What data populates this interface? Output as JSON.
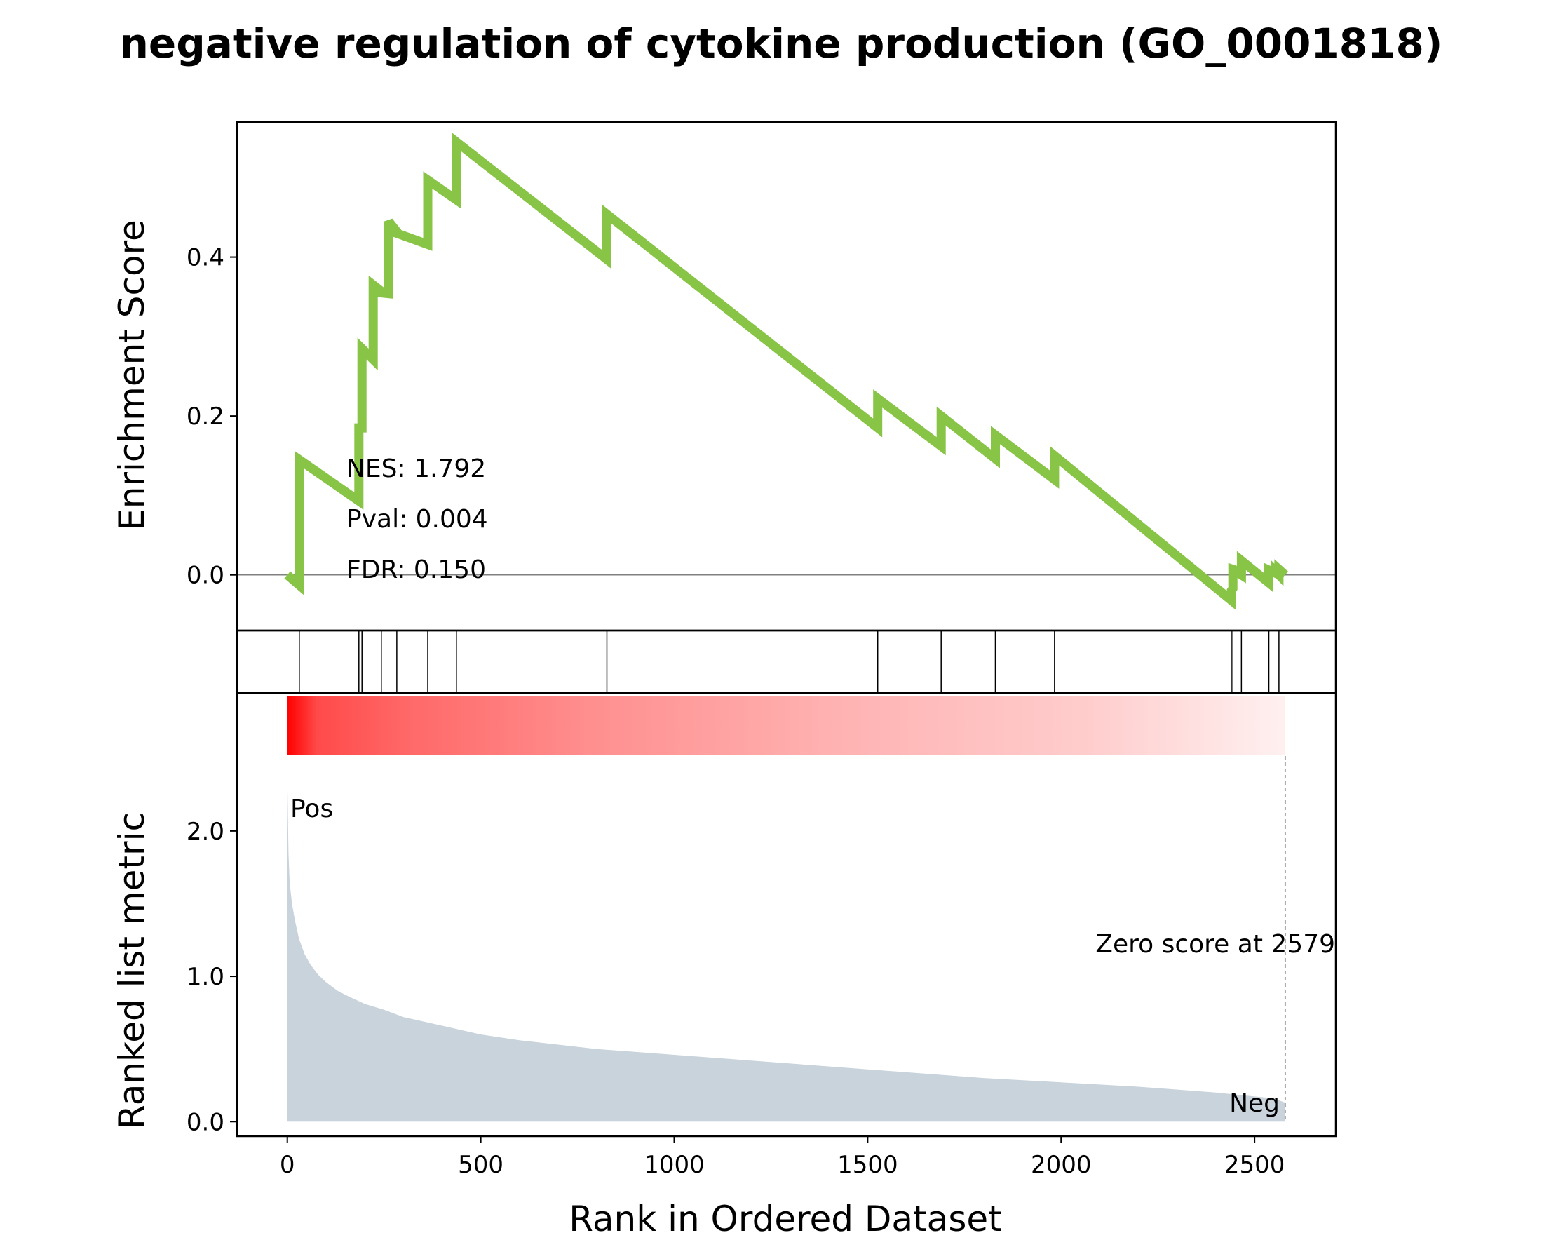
{
  "chart_data": {
    "type": "line",
    "title": "negative regulation of cytokine production (GO_0001818)",
    "xlabel": "Rank in Ordered Dataset",
    "colors": {
      "es_line": "#88c446",
      "metric_fill": "#c8d3dc",
      "pos": "#ff0000",
      "neg": "#0000ff",
      "zero_line": "#808080"
    },
    "enrichment": {
      "ylabel": "Enrichment Score",
      "ylim": [
        -0.07,
        0.57
      ],
      "yticks": [
        0.0,
        0.2,
        0.4
      ],
      "ytick_labels": [
        "0.0",
        "0.2",
        "0.4"
      ],
      "stats": [
        "NES: 1.792",
        "Pval: 0.004",
        "FDR: 0.150"
      ],
      "x": [
        0,
        31,
        31,
        185,
        185,
        193,
        193,
        222,
        222,
        243,
        243,
        262,
        262,
        283,
        283,
        363,
        363,
        437,
        437,
        826,
        826,
        1526,
        1526,
        1690,
        1690,
        1830,
        1830,
        1983,
        1983,
        2440,
        2440,
        2444,
        2444,
        2450,
        2450,
        2466,
        2466,
        2537,
        2537,
        2555,
        2555,
        2563,
        2563,
        2579
      ],
      "y": [
        0.0,
        -0.013,
        0.145,
        0.093,
        0.185,
        0.185,
        0.285,
        0.271,
        0.365,
        0.357,
        0.355,
        0.354,
        0.445,
        0.432,
        0.43,
        0.416,
        0.497,
        0.472,
        0.545,
        0.397,
        0.454,
        0.185,
        0.222,
        0.162,
        0.2,
        0.146,
        0.176,
        0.12,
        0.15,
        -0.032,
        -0.02,
        -0.017,
        0.007,
        0.006,
        0.005,
        0.0,
        0.018,
        -0.01,
        0.006,
        0.002,
        0.004,
        0.0,
        0.007,
        0.0
      ]
    },
    "hits": [
      31,
      185,
      193,
      243,
      283,
      363,
      437,
      826,
      1526,
      1690,
      1830,
      1983,
      2440,
      2444,
      2466,
      2537,
      2563
    ],
    "metric": {
      "ylabel": "Ranked list metric",
      "ylim": [
        -0.1,
        2.95
      ],
      "yticks": [
        0.0,
        1.0,
        2.0
      ],
      "ytick_labels": [
        "0.0",
        "1.0",
        "2.0"
      ],
      "x": [
        0,
        3,
        6,
        12,
        20,
        30,
        45,
        60,
        80,
        100,
        130,
        160,
        200,
        250,
        300,
        350,
        400,
        500,
        600,
        800,
        1000,
        1200,
        1500,
        1800,
        2000,
        2200,
        2400,
        2550,
        2579
      ],
      "y": [
        2.38,
        1.85,
        1.65,
        1.5,
        1.38,
        1.26,
        1.15,
        1.08,
        1.01,
        0.96,
        0.9,
        0.86,
        0.81,
        0.77,
        0.72,
        0.69,
        0.66,
        0.6,
        0.56,
        0.5,
        0.46,
        0.42,
        0.36,
        0.3,
        0.27,
        0.24,
        0.2,
        0.16,
        0.13
      ],
      "pos_label": "Pos",
      "neg_label": "Neg",
      "zero_score_text": "Zero score at 2579",
      "zero_score_rank": 2579
    },
    "xlim": [
      -130,
      2710
    ],
    "xticks": [
      0,
      500,
      1000,
      1500,
      2000,
      2500
    ],
    "xtick_labels": [
      "0",
      "500",
      "1000",
      "1500",
      "2000",
      "2500"
    ]
  }
}
